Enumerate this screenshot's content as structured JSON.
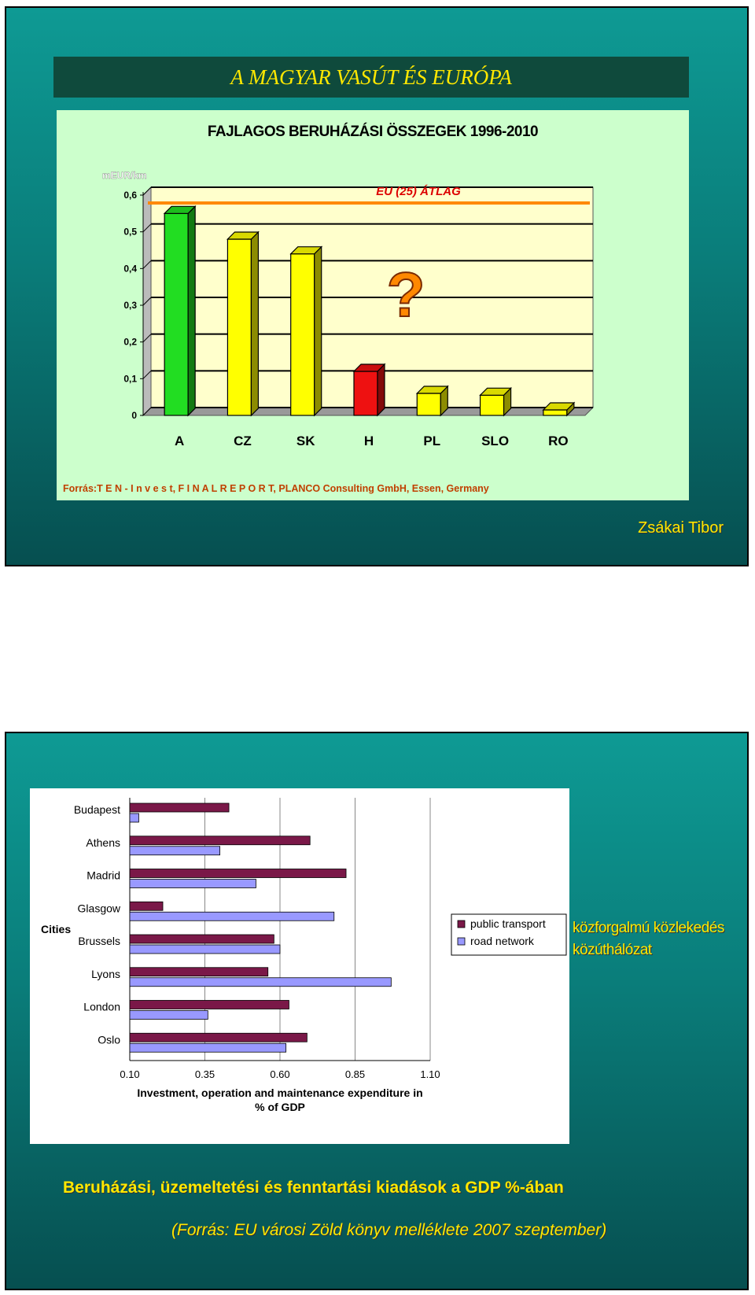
{
  "slide1": {
    "title": "A MAGYAR VASÚT ÉS EURÓPA",
    "author": "Zsákai Tibor",
    "source": "Forrás:T E N - I n v e s t, F I N A L  R E P O R T, PLANCO Consulting GmbH, Essen, Germany"
  },
  "slide2": {
    "side_labels": [
      "közforgalmú közlekedés",
      "közúthálózat"
    ],
    "caption": "Beruházási, üzemeltetési és fenntartási kiadások a GDP %-ában",
    "source": "(Forrás: EU városi Zöld könyv melléklete 2007 szeptember)"
  },
  "chart_data": [
    {
      "type": "bar",
      "title": "FAJLAGOS BERUHÁZÁSI ÖSSZEGEK 1996-2010",
      "ylabel": "mEUR/km",
      "categories": [
        "A",
        "CZ",
        "SK",
        "H",
        "PL",
        "SLO",
        "RO"
      ],
      "values": [
        0.55,
        0.48,
        0.44,
        0.12,
        0.06,
        0.055,
        0.015
      ],
      "bar_colors": [
        "#22dd22",
        "#ffff00",
        "#ffff00",
        "#ee1111",
        "#ffff00",
        "#ffff00",
        "#ffff00"
      ],
      "ylim": [
        0,
        0.6
      ],
      "yticks": [
        "0",
        "0,1",
        "0,2",
        "0,3",
        "0,4",
        "0,5",
        "0,6"
      ],
      "reference_line": {
        "label": "EU (25) ÁTLAG",
        "value": 0.57,
        "color": "#ff8800"
      },
      "annotation": "?",
      "grid": true,
      "plot_background": "#ffffcc"
    },
    {
      "type": "bar",
      "orientation": "horizontal",
      "categories": [
        "Budapest",
        "Athens",
        "Madrid",
        "Glasgow",
        "Brussels",
        "Lyons",
        "London",
        "Oslo"
      ],
      "series": [
        {
          "name": "public transport",
          "color": "#7a1848",
          "values": [
            0.43,
            0.7,
            0.82,
            0.21,
            0.58,
            0.56,
            0.63,
            0.69
          ]
        },
        {
          "name": "road network",
          "color": "#9999ff",
          "values": [
            0.13,
            0.4,
            0.52,
            0.78,
            0.6,
            0.97,
            0.36,
            0.62
          ]
        }
      ],
      "ylabel": "Cities",
      "xlabel": "Investment, operation and maintenance expenditure in % of GDP",
      "xlim": [
        0.1,
        1.1
      ],
      "xticks": [
        "0.10",
        "0.35",
        "0.60",
        "0.85",
        "1.10"
      ],
      "legend": "right",
      "grid": true
    }
  ]
}
